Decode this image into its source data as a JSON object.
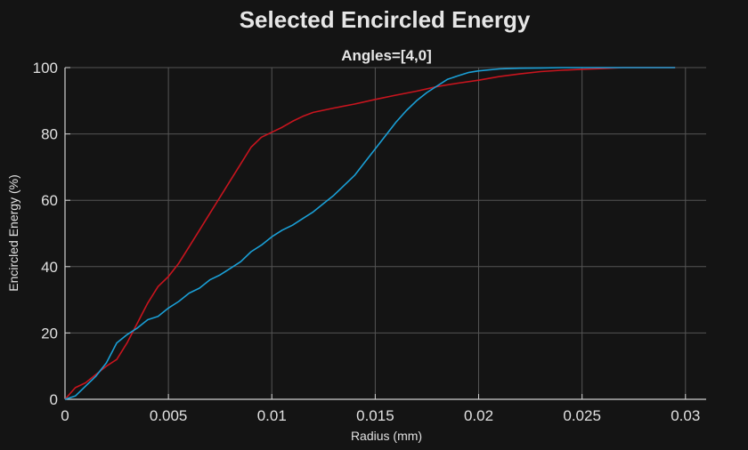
{
  "chart_data": {
    "type": "line",
    "title": "Selected Encircled Energy",
    "subtitle": "Angles=[4,0]",
    "xlabel": "Radius (mm)",
    "ylabel": "Encircled Energy (%)",
    "xlim": [
      0,
      0.031
    ],
    "ylim": [
      0,
      100
    ],
    "xticks": [
      0,
      0.005,
      0.01,
      0.015,
      0.02,
      0.025,
      0.03
    ],
    "xtick_labels": [
      "0",
      "0.005",
      "0.01",
      "0.015",
      "0.02",
      "0.025",
      "0.03"
    ],
    "yticks": [
      0,
      20,
      40,
      60,
      80,
      100
    ],
    "ytick_labels": [
      "0",
      "20",
      "40",
      "60",
      "80",
      "100"
    ],
    "grid": true,
    "background": "#141414",
    "grid_color": "#555555",
    "series": [
      {
        "color": "#c8141e",
        "x": [
          0,
          0.0005,
          0.001,
          0.0015,
          0.002,
          0.0025,
          0.003,
          0.0035,
          0.004,
          0.0045,
          0.005,
          0.0055,
          0.006,
          0.0065,
          0.007,
          0.0075,
          0.008,
          0.0085,
          0.009,
          0.0095,
          0.01,
          0.0105,
          0.011,
          0.0115,
          0.012,
          0.013,
          0.014,
          0.015,
          0.016,
          0.017,
          0.018,
          0.019,
          0.02,
          0.021,
          0.022,
          0.023,
          0.024,
          0.025,
          0.026,
          0.027,
          0.028,
          0.029,
          0.0295
        ],
        "y": [
          0,
          3.5,
          5,
          7.5,
          10,
          12,
          17,
          23,
          29,
          34,
          37,
          41,
          46,
          51,
          56,
          61,
          66,
          71,
          76,
          79,
          80.5,
          82,
          83.8,
          85.3,
          86.5,
          87.8,
          89,
          90.4,
          91.7,
          92.9,
          94.3,
          95.3,
          96.2,
          97.3,
          98.1,
          98.8,
          99.2,
          99.5,
          99.7,
          100,
          100,
          100,
          100
        ]
      },
      {
        "color": "#1a9fd6",
        "x": [
          0,
          0.0005,
          0.001,
          0.0015,
          0.002,
          0.0025,
          0.003,
          0.0035,
          0.004,
          0.0045,
          0.005,
          0.0055,
          0.006,
          0.0065,
          0.007,
          0.0075,
          0.008,
          0.0085,
          0.009,
          0.0095,
          0.01,
          0.0105,
          0.011,
          0.0115,
          0.012,
          0.0125,
          0.013,
          0.0135,
          0.014,
          0.0145,
          0.015,
          0.0155,
          0.016,
          0.0165,
          0.017,
          0.0175,
          0.018,
          0.0185,
          0.019,
          0.0195,
          0.02,
          0.021,
          0.022,
          0.023,
          0.024,
          0.025,
          0.026,
          0.027,
          0.028,
          0.029,
          0.0295
        ],
        "y": [
          0,
          1,
          4,
          7,
          11,
          17,
          19.5,
          21.5,
          24,
          25,
          27.5,
          29.5,
          32,
          33.5,
          36,
          37.5,
          39.5,
          41.5,
          44.5,
          46.5,
          49,
          51,
          52.5,
          54.5,
          56.5,
          59,
          61.5,
          64.5,
          67.5,
          71.5,
          75.5,
          79.5,
          83.5,
          87,
          90,
          92.5,
          94.5,
          96.5,
          97.5,
          98.5,
          99,
          99.6,
          99.8,
          99.9,
          100,
          100,
          100,
          100,
          100,
          100,
          100
        ]
      }
    ]
  }
}
